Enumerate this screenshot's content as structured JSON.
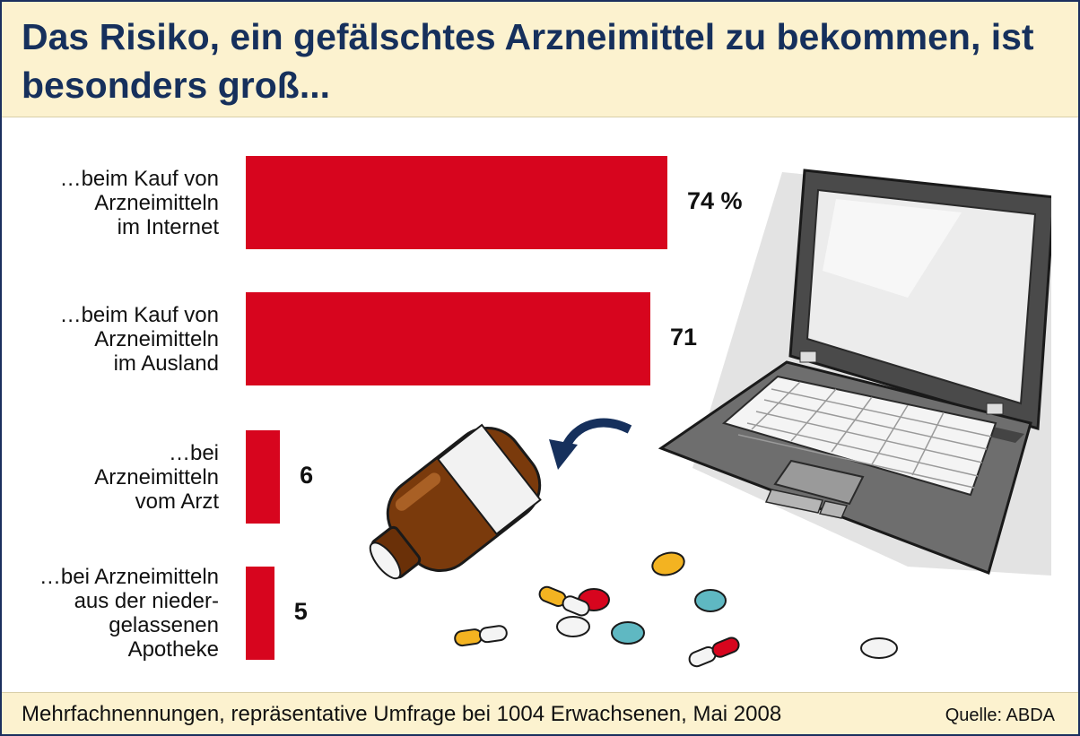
{
  "title": "Das Risiko, ein gefälschtes Arzneimittel zu bekommen, ist besonders groß...",
  "footnote": "Mehrfachnennungen, repräsentative Umfrage bei 1004 Erwachsenen, Mai 2008",
  "source": "Quelle: ABDA",
  "colors": {
    "bar": "#d7051e",
    "header_bg": "#fcf2cf",
    "title": "#16305c"
  },
  "chart_data": {
    "type": "bar",
    "orientation": "horizontal",
    "title": "Das Risiko, ein gefälschtes Arzneimittel zu bekommen, ist besonders groß...",
    "categories": [
      "…beim Kauf von\nArzneimitteln\nim Internet",
      "…beim Kauf von\nArzneimitteln\nim Ausland",
      "…bei\nArzneimitteln\nvom Arzt",
      "…bei Arzneimitteln\naus der nieder-\ngelassenen\nApotheke"
    ],
    "values": [
      74,
      71,
      6,
      5
    ],
    "value_labels": [
      "74 %",
      "71",
      "6",
      "5"
    ],
    "unit": "%",
    "xlim": [
      0,
      100
    ],
    "grid": false,
    "legend": "none"
  }
}
